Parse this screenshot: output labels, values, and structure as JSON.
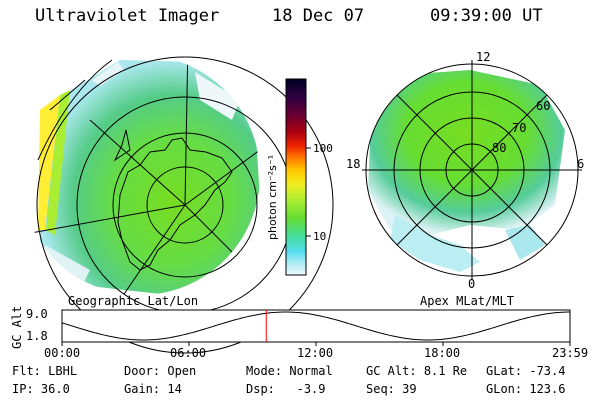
{
  "header": {
    "instrument": "Ultraviolet Imager",
    "date": "18 Dec 07",
    "time": "09:39:00 UT"
  },
  "left_panel": {
    "caption": "Geographic Lat/Lon"
  },
  "right_panel": {
    "caption": "Apex MLat/MLT",
    "mlt_labels": {
      "top": "12",
      "bottom": "0",
      "left": "18",
      "right": "6"
    },
    "lat_labels": [
      "60",
      "70",
      "80"
    ]
  },
  "colorbar": {
    "unit_label": "photon cm⁻²s⁻¹",
    "ticks": [
      "100",
      "10"
    ],
    "colors": [
      "#000033",
      "#220044",
      "#550033",
      "#880022",
      "#bb0011",
      "#dd1100",
      "#ff3300",
      "#ff7700",
      "#ffaa00",
      "#ffdd00",
      "#ddee22",
      "#aaee33",
      "#77dd33",
      "#55dd44",
      "#44dd88",
      "#44ddcc",
      "#66ddee",
      "#99e5f0",
      "#ccf0f5",
      "#eef8fa"
    ]
  },
  "timeline": {
    "ylabel": "GC Alt",
    "y_ticks": [
      "9.0",
      "1.8"
    ],
    "x_ticks": [
      "00:00",
      "06:00",
      "12:00",
      "18:00",
      "23:59"
    ],
    "current_time_fraction": 0.4021,
    "marker_color": "#ff0000"
  },
  "footer": {
    "row1": [
      {
        "label": "Flt:",
        "value": "LBHL"
      },
      {
        "label": "Door:",
        "value": "Open"
      },
      {
        "label": "Mode:",
        "value": "Normal"
      },
      {
        "label": "GC Alt:",
        "value": "8.1 Re"
      },
      {
        "label": "GLat:",
        "value": "-73.4"
      }
    ],
    "row2": [
      {
        "label": "IP:",
        "value": "36.0"
      },
      {
        "label": "Gain:",
        "value": "14"
      },
      {
        "label": "Dsp:",
        "value": "  -3.9"
      },
      {
        "label": "Seq:",
        "value": "39"
      },
      {
        "label": "GLon:",
        "value": "123.6"
      }
    ]
  }
}
